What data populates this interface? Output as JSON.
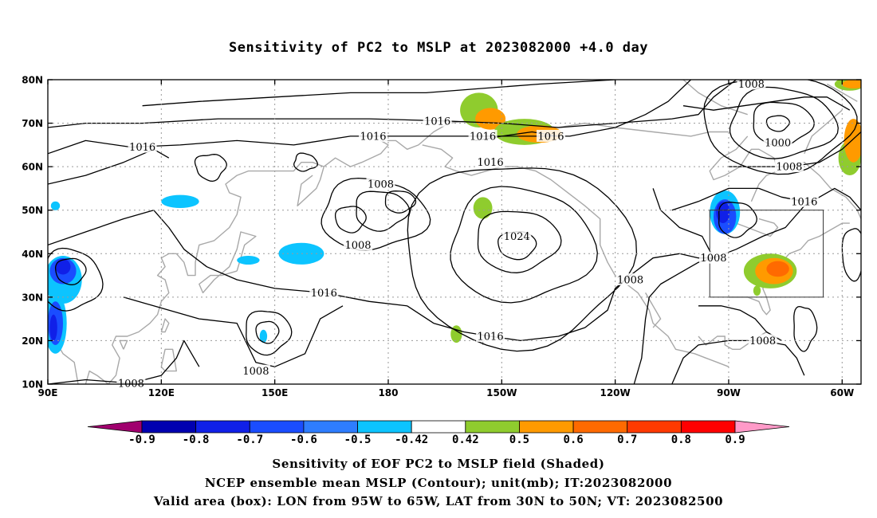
{
  "title": "Sensitivity of PC2 to MSLP at 2023082000 +4.0 day",
  "map": {
    "lon_range": [
      90,
      305
    ],
    "lat_range": [
      10,
      80
    ],
    "x_ticks": [
      {
        "lon": 90,
        "label": "90E"
      },
      {
        "lon": 120,
        "label": "120E"
      },
      {
        "lon": 150,
        "label": "150E"
      },
      {
        "lon": 180,
        "label": "180"
      },
      {
        "lon": 210,
        "label": "150W"
      },
      {
        "lon": 240,
        "label": "120W"
      },
      {
        "lon": 270,
        "label": "90W"
      },
      {
        "lon": 300,
        "label": "60W"
      }
    ],
    "y_ticks": [
      {
        "lat": 10,
        "label": "10N"
      },
      {
        "lat": 20,
        "label": "20N"
      },
      {
        "lat": 30,
        "label": "30N"
      },
      {
        "lat": 40,
        "label": "40N"
      },
      {
        "lat": 50,
        "label": "50N"
      },
      {
        "lat": 60,
        "label": "60N"
      },
      {
        "lat": 70,
        "label": "70N"
      },
      {
        "lat": 80,
        "label": "80N"
      }
    ],
    "valid_box": {
      "lon_min": 265,
      "lon_max": 295,
      "lat_min": 30,
      "lat_max": 50
    },
    "contour_labels": [
      {
        "text": "1016",
        "lon": 193,
        "lat": 70.5
      },
      {
        "text": "1016",
        "lon": 176,
        "lat": 67
      },
      {
        "text": "1016",
        "lon": 205,
        "lat": 67
      },
      {
        "text": "1016",
        "lon": 223,
        "lat": 67
      },
      {
        "text": "1016",
        "lon": 115,
        "lat": 64.5
      },
      {
        "text": "1016",
        "lon": 207,
        "lat": 61
      },
      {
        "text": "1008",
        "lon": 178,
        "lat": 56
      },
      {
        "text": "1008",
        "lon": 172,
        "lat": 42
      },
      {
        "text": "1016",
        "lon": 163,
        "lat": 31
      },
      {
        "text": "1024",
        "lon": 214,
        "lat": 44
      },
      {
        "text": "1016",
        "lon": 207,
        "lat": 21
      },
      {
        "text": "1008",
        "lon": 145,
        "lat": 13
      },
      {
        "text": "1008",
        "lon": 112,
        "lat": 10.2
      },
      {
        "text": "1008",
        "lon": 244,
        "lat": 34
      },
      {
        "text": "1008",
        "lon": 266,
        "lat": 39
      },
      {
        "text": "1008",
        "lon": 279,
        "lat": 20
      },
      {
        "text": "1008",
        "lon": 276,
        "lat": 79
      },
      {
        "text": "1000",
        "lon": 283,
        "lat": 65.5
      },
      {
        "text": "1008",
        "lon": 286,
        "lat": 60
      },
      {
        "text": "1016",
        "lon": 290,
        "lat": 52
      }
    ],
    "shaded_regions": [
      {
        "level": 0.5,
        "lon": 204,
        "lat": 73,
        "rx": 5,
        "ry": 4
      },
      {
        "level": 0.6,
        "lon": 207,
        "lat": 71,
        "rx": 4,
        "ry": 2.5
      },
      {
        "level": 0.5,
        "lon": 216,
        "lat": 68,
        "rx": 8,
        "ry": 3
      },
      {
        "level": 0.6,
        "lon": 220,
        "lat": 67.5,
        "rx": 6,
        "ry": 2
      },
      {
        "level": 0.5,
        "lon": 205,
        "lat": 50.5,
        "rx": 2.5,
        "ry": 2.5
      },
      {
        "level": 0.5,
        "lon": 198,
        "lat": 21.5,
        "rx": 1.5,
        "ry": 2
      },
      {
        "level": 0.5,
        "lon": 302,
        "lat": 62,
        "rx": 3,
        "ry": 4
      },
      {
        "level": 0.6,
        "lon": 303,
        "lat": 66,
        "rx": 2.5,
        "ry": 5
      },
      {
        "level": 0.5,
        "lon": 302,
        "lat": 79,
        "rx": 4,
        "ry": 1.5
      },
      {
        "level": 0.6,
        "lon": 303,
        "lat": 79,
        "rx": 3,
        "ry": 1
      },
      {
        "level": 0.5,
        "lon": 281,
        "lat": 36,
        "rx": 7,
        "ry": 4
      },
      {
        "level": 0.6,
        "lon": 282,
        "lat": 36,
        "rx": 5,
        "ry": 3
      },
      {
        "level": 0.7,
        "lon": 283,
        "lat": 36.5,
        "rx": 3,
        "ry": 1.8
      },
      {
        "level": 0.5,
        "lon": 277.5,
        "lat": 31.5,
        "rx": 1,
        "ry": 1.2
      },
      {
        "level": -0.5,
        "lon": 269,
        "lat": 49.5,
        "rx": 4,
        "ry": 5
      },
      {
        "level": -0.6,
        "lon": 269,
        "lat": 48.5,
        "rx": 3,
        "ry": 4
      },
      {
        "level": -0.7,
        "lon": 268.5,
        "lat": 49.5,
        "rx": 1.8,
        "ry": 2.5
      },
      {
        "level": -0.5,
        "lon": 125,
        "lat": 52,
        "rx": 5,
        "ry": 1.5
      },
      {
        "level": -0.5,
        "lon": 92,
        "lat": 51,
        "rx": 1.2,
        "ry": 1
      },
      {
        "level": -0.5,
        "lon": 157,
        "lat": 40,
        "rx": 6,
        "ry": 2.5
      },
      {
        "level": -0.5,
        "lon": 143,
        "lat": 38.5,
        "rx": 3,
        "ry": 1
      },
      {
        "level": -0.5,
        "lon": 147,
        "lat": 21,
        "rx": 1,
        "ry": 1.5
      },
      {
        "level": -0.5,
        "lon": 94,
        "lat": 34,
        "rx": 5,
        "ry": 5.5
      },
      {
        "level": -0.6,
        "lon": 94,
        "lat": 36,
        "rx": 3.5,
        "ry": 3
      },
      {
        "level": -0.7,
        "lon": 94,
        "lat": 37,
        "rx": 2,
        "ry": 1.8
      },
      {
        "level": -0.5,
        "lon": 92,
        "lat": 24,
        "rx": 3,
        "ry": 7
      },
      {
        "level": -0.6,
        "lon": 92,
        "lat": 24,
        "rx": 2,
        "ry": 5
      },
      {
        "level": -0.7,
        "lon": 91.5,
        "lat": 23,
        "rx": 1,
        "ry": 3
      }
    ]
  },
  "colorbar": {
    "colors": [
      "#a0006e",
      "#0000b0",
      "#1020e8",
      "#1a4dff",
      "#2e7dff",
      "#0cc4ff",
      "#ffffff",
      "#8fcc2e",
      "#ff9a00",
      "#ff6a00",
      "#ff3a00",
      "#ff0000",
      "#ff9ac8"
    ],
    "labels": [
      "-0.9",
      "-0.8",
      "-0.7",
      "-0.6",
      "-0.5",
      "-0.42",
      "0.42",
      "0.5",
      "0.6",
      "0.7",
      "0.8",
      "0.9"
    ]
  },
  "captions": {
    "line1": "Sensitivity of EOF PC2 to MSLP field (Shaded)",
    "line2": "NCEP ensemble mean MSLP (Contour); unit(mb); IT:2023082000",
    "line3": "Valid area (box): LON from 95W to 65W, LAT from 30N to 50N; VT: 2023082500"
  }
}
